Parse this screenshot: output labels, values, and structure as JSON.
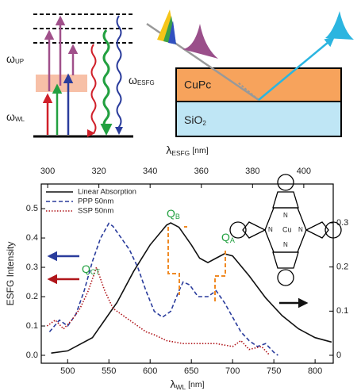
{
  "diagram": {
    "omega_up": {
      "symbol": "ω",
      "sub": "UP"
    },
    "omega_wl": {
      "symbol": "ω",
      "sub": "WL"
    },
    "omega_esfg": {
      "symbol": "ω",
      "sub": "ESFG"
    },
    "film": "CuPc",
    "substrate": {
      "main": "SiO",
      "sub": "2"
    }
  },
  "molecule": {
    "metal": "Cu",
    "atom": "N"
  },
  "chart_data": {
    "type": "line",
    "xlabel": {
      "symbol": "λ",
      "sub": "WL",
      "unit": "[nm]"
    },
    "x2label": {
      "symbol": "λ",
      "sub": "ESFG",
      "unit": "[nm]"
    },
    "ylabel": "ESFG Intensity",
    "xlim": [
      468,
      822
    ],
    "xticks": [
      500,
      550,
      600,
      650,
      700,
      750,
      800
    ],
    "x2lim": [
      297.5,
      411.5
    ],
    "x2ticks": [
      300,
      320,
      340,
      360,
      380,
      400
    ],
    "ylim": [
      -0.027,
      0.584
    ],
    "yticks": [
      {
        "value": 0,
        "label": "0.0"
      },
      0.1,
      0.2,
      0.3,
      0.4,
      0.5
    ],
    "y2lim": [
      -0.018,
      0.388
    ],
    "y2ticks": [
      0,
      0.1,
      0.2,
      0.3
    ],
    "grid": false,
    "legend": "upper left",
    "series": [
      {
        "name": "Linear Absorption",
        "color": "#111111",
        "dash": "solid",
        "axis": "y2",
        "x": [
          480,
          500,
          530,
          560,
          580,
          600,
          620,
          625,
          635,
          650,
          660,
          670,
          680,
          690,
          700,
          720,
          740,
          760,
          780,
          800,
          820
        ],
        "values": [
          0.005,
          0.01,
          0.04,
          0.12,
          0.19,
          0.25,
          0.295,
          0.3,
          0.29,
          0.25,
          0.22,
          0.21,
          0.22,
          0.23,
          0.225,
          0.18,
          0.13,
          0.09,
          0.06,
          0.04,
          0.03
        ]
      },
      {
        "name": "PPP 50nm",
        "color": "#2a3c9c",
        "dash": "dashed",
        "x": [
          478,
          490,
          500,
          510,
          520,
          530,
          540,
          550,
          555,
          565,
          575,
          585,
          595,
          605,
          615,
          625,
          635,
          640,
          648,
          658,
          670,
          680,
          690,
          700,
          710,
          720,
          730,
          740,
          750,
          755
        ],
        "values": [
          0.08,
          0.12,
          0.1,
          0.14,
          0.22,
          0.32,
          0.4,
          0.45,
          0.44,
          0.4,
          0.36,
          0.3,
          0.22,
          0.15,
          0.13,
          0.15,
          0.22,
          0.25,
          0.24,
          0.2,
          0.2,
          0.22,
          0.18,
          0.13,
          0.08,
          0.05,
          0.03,
          0.04,
          0.01,
          0
        ]
      },
      {
        "name": "SSP 50nm",
        "color": "#b0161b",
        "dash": "dotted",
        "x": [
          475,
          485,
          495,
          505,
          515,
          525,
          535,
          545,
          555,
          565,
          575,
          585,
          595,
          605,
          620,
          640,
          660,
          680,
          700,
          710,
          720,
          735,
          745
        ],
        "values": [
          0.1,
          0.12,
          0.09,
          0.12,
          0.16,
          0.22,
          0.3,
          0.22,
          0.16,
          0.14,
          0.12,
          0.1,
          0.08,
          0.07,
          0.05,
          0.04,
          0.04,
          0.04,
          0.03,
          0.05,
          0.02,
          0.03,
          0
        ]
      }
    ],
    "annotations": [
      {
        "main": "Q",
        "sub": "B"
      },
      {
        "main": "Q",
        "sub": "A"
      },
      {
        "main": "Q",
        "sub": "CT"
      }
    ]
  }
}
